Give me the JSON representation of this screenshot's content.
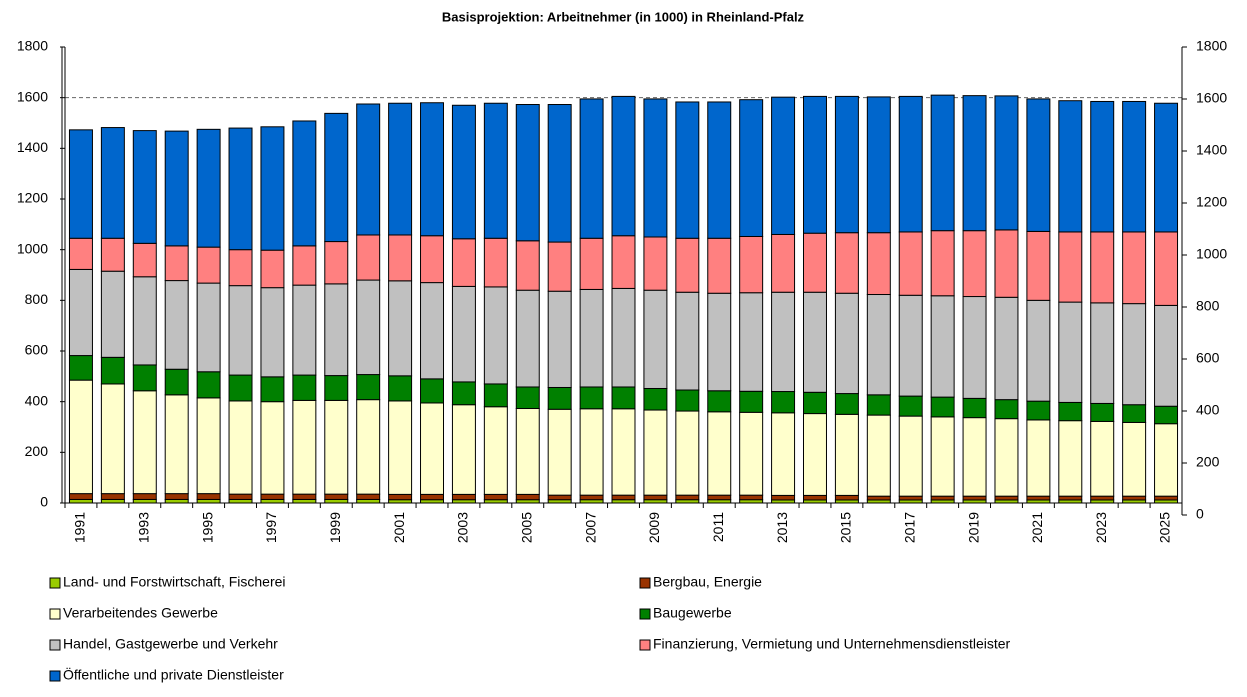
{
  "chart_data": {
    "type": "stacked-bar",
    "title": "Basisprojektion: Arbeitnehmer (in 1000) in Rheinland-Pfalz",
    "categories": [
      "1991",
      null,
      "1993",
      null,
      "1995",
      null,
      "1997",
      null,
      "1999",
      null,
      "2001",
      null,
      "2003",
      null,
      "2005",
      null,
      "2007",
      null,
      "2009",
      null,
      "2011",
      null,
      "2013",
      null,
      "2015",
      null,
      "2017",
      null,
      "2019",
      null,
      "2021",
      null,
      "2023",
      null,
      "2025"
    ],
    "series": [
      {
        "name": "Land- und Forstwirtschaft, Fischerei",
        "color": "#99cc00",
        "values": [
          14,
          14,
          14,
          14,
          14,
          14,
          14,
          14,
          14,
          14,
          13,
          13,
          13,
          13,
          13,
          13,
          13,
          13,
          13,
          13,
          13,
          13,
          12,
          12,
          12,
          12,
          12,
          12,
          12,
          12,
          12,
          12,
          12,
          12,
          12
        ]
      },
      {
        "name": "Bergbau, Energie",
        "color": "#993300",
        "values": [
          23,
          23,
          23,
          23,
          23,
          21,
          21,
          21,
          21,
          21,
          21,
          21,
          21,
          21,
          21,
          18,
          18,
          18,
          18,
          18,
          18,
          18,
          18,
          18,
          18,
          15,
          15,
          15,
          15,
          15,
          15,
          15,
          15,
          15,
          15
        ]
      },
      {
        "name": "Verarbeitendes Gewerbe",
        "color": "#ffffcc",
        "values": [
          448,
          433,
          406,
          390,
          378,
          368,
          365,
          370,
          370,
          373,
          369,
          361,
          354,
          346,
          339,
          339,
          341,
          341,
          336,
          332,
          329,
          327,
          326,
          323,
          320,
          320,
          316,
          313,
          310,
          306,
          301,
          298,
          295,
          291,
          286
        ]
      },
      {
        "name": "Baugewerbe",
        "color": "#008000",
        "values": [
          97,
          105,
          102,
          101,
          103,
          102,
          98,
          100,
          98,
          99,
          99,
          95,
          90,
          90,
          85,
          86,
          86,
          86,
          85,
          83,
          83,
          83,
          84,
          84,
          82,
          80,
          79,
          78,
          76,
          75,
          74,
          72,
          71,
          70,
          69
        ]
      },
      {
        "name": "Handel, Gastgewerbe und Verkehr",
        "color": "#c0c0c0",
        "values": [
          340,
          340,
          348,
          350,
          350,
          353,
          352,
          355,
          362,
          373,
          375,
          380,
          377,
          383,
          382,
          380,
          385,
          389,
          388,
          386,
          385,
          389,
          392,
          395,
          396,
          396,
          398,
          400,
          402,
          404,
          398,
          396,
          397,
          399,
          398
        ]
      },
      {
        "name": "Finanzierung, Vermietung und Unternehmensdienstleister",
        "color": "#ff8080",
        "values": [
          123,
          130,
          132,
          137,
          142,
          142,
          148,
          155,
          167,
          178,
          181,
          185,
          188,
          192,
          195,
          194,
          202,
          208,
          210,
          213,
          217,
          222,
          228,
          233,
          239,
          244,
          250,
          257,
          260,
          266,
          272,
          277,
          280,
          283,
          290
        ]
      },
      {
        "name": "Öffentliche und private Dienstleister",
        "color": "#0066cc",
        "values": [
          428,
          437,
          445,
          453,
          465,
          480,
          487,
          493,
          506,
          517,
          520,
          525,
          527,
          533,
          538,
          543,
          550,
          550,
          545,
          538,
          538,
          540,
          542,
          540,
          538,
          536,
          535,
          535,
          533,
          529,
          523,
          518,
          515,
          515,
          508
        ]
      }
    ],
    "ylim": [
      0,
      1800
    ],
    "yticks": [
      0,
      200,
      400,
      600,
      800,
      1000,
      1200,
      1400,
      1600,
      1800
    ],
    "y2lim": [
      0,
      1800
    ],
    "y2ticks": [
      0,
      200,
      400,
      600,
      800,
      1000,
      1200,
      1400,
      1600,
      1800
    ],
    "reference_line": 1600
  }
}
